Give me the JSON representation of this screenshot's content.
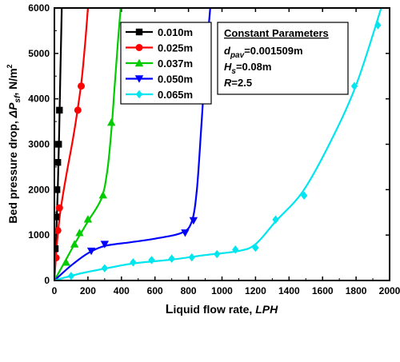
{
  "chart_data": {
    "type": "scatter",
    "xlabel_lead": "L",
    "xlabel_main": "iquid flow rate, ",
    "xlabel_unit": "LPH",
    "ylabel_main": "Bed pressure drop, ",
    "ylabel_sym": "ΔP",
    "ylabel_sub": "sf",
    "ylabel_unit": ", N/m",
    "ylabel_sup": "2",
    "xlim": [
      0,
      2000
    ],
    "ylim": [
      0,
      6000
    ],
    "x_ticks": [
      0,
      200,
      400,
      600,
      800,
      1000,
      1200,
      1400,
      1600,
      1800,
      2000
    ],
    "y_ticks": [
      0,
      1000,
      2000,
      3000,
      4000,
      5000,
      6000
    ],
    "legend_position": "top-left",
    "series": [
      {
        "name": "0.010m",
        "color": "#000000",
        "marker": "square",
        "points": [
          [
            5,
            700
          ],
          [
            10,
            1400
          ],
          [
            15,
            2000
          ],
          [
            20,
            2600
          ],
          [
            25,
            3000
          ],
          [
            30,
            3750
          ]
        ],
        "curve": [
          [
            0,
            0
          ],
          [
            10,
            900
          ],
          [
            20,
            2000
          ],
          [
            28,
            3200
          ],
          [
            36,
            4600
          ],
          [
            44,
            6000
          ]
        ]
      },
      {
        "name": "0.025m",
        "color": "#ff0000",
        "marker": "circle",
        "points": [
          [
            10,
            500
          ],
          [
            20,
            1100
          ],
          [
            30,
            1600
          ],
          [
            140,
            3750
          ],
          [
            160,
            4280
          ]
        ],
        "curve": [
          [
            0,
            0
          ],
          [
            15,
            800
          ],
          [
            35,
            1500
          ],
          [
            70,
            2300
          ],
          [
            110,
            3100
          ],
          [
            140,
            3800
          ],
          [
            165,
            4500
          ],
          [
            185,
            5300
          ],
          [
            200,
            6000
          ]
        ]
      },
      {
        "name": "0.037m",
        "color": "#00cc00",
        "marker": "triangle-up",
        "points": [
          [
            70,
            400
          ],
          [
            120,
            800
          ],
          [
            150,
            1050
          ],
          [
            200,
            1350
          ],
          [
            290,
            1880
          ],
          [
            340,
            3480
          ]
        ],
        "curve": [
          [
            0,
            0
          ],
          [
            60,
            400
          ],
          [
            120,
            800
          ],
          [
            200,
            1300
          ],
          [
            280,
            1800
          ],
          [
            315,
            2400
          ],
          [
            340,
            3300
          ],
          [
            360,
            4300
          ],
          [
            380,
            5300
          ],
          [
            395,
            6000
          ]
        ]
      },
      {
        "name": "0.050m",
        "color": "#0000ff",
        "marker": "triangle-down",
        "points": [
          [
            220,
            650
          ],
          [
            300,
            800
          ],
          [
            780,
            1050
          ],
          [
            830,
            1320
          ],
          [
            890,
            4280
          ]
        ],
        "curve": [
          [
            0,
            0
          ],
          [
            100,
            330
          ],
          [
            200,
            600
          ],
          [
            300,
            760
          ],
          [
            450,
            840
          ],
          [
            600,
            920
          ],
          [
            760,
            1050
          ],
          [
            820,
            1300
          ],
          [
            850,
            2000
          ],
          [
            875,
            3300
          ],
          [
            900,
            4700
          ],
          [
            930,
            6000
          ]
        ]
      },
      {
        "name": "0.065m",
        "color": "#00e5ee",
        "marker": "diamond",
        "points": [
          [
            100,
            100
          ],
          [
            300,
            270
          ],
          [
            470,
            400
          ],
          [
            580,
            450
          ],
          [
            700,
            480
          ],
          [
            820,
            510
          ],
          [
            970,
            580
          ],
          [
            1080,
            680
          ],
          [
            1200,
            720
          ],
          [
            1320,
            1340
          ],
          [
            1490,
            1870
          ],
          [
            1790,
            4280
          ],
          [
            1930,
            5620
          ]
        ],
        "curve": [
          [
            0,
            0
          ],
          [
            150,
            150
          ],
          [
            300,
            260
          ],
          [
            480,
            380
          ],
          [
            700,
            460
          ],
          [
            900,
            560
          ],
          [
            1100,
            650
          ],
          [
            1200,
            800
          ],
          [
            1320,
            1300
          ],
          [
            1480,
            1950
          ],
          [
            1640,
            3000
          ],
          [
            1800,
            4300
          ],
          [
            1950,
            6000
          ]
        ]
      }
    ],
    "parameters": {
      "heading": "Constant Parameters",
      "lines": [
        {
          "sym": "d",
          "sub": "pav",
          "value": "=0.001509m"
        },
        {
          "sym": "H",
          "sub": "s",
          "value": "=0.08m"
        },
        {
          "sym": "R",
          "sub": "",
          "value": "=2.5"
        }
      ]
    }
  }
}
